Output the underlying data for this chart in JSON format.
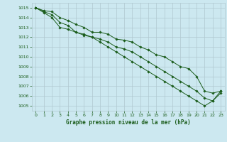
{
  "title": "Graphe pression niveau de la mer (hPa)",
  "background_color": "#cce8f0",
  "grid_color": "#b0c8d0",
  "line_color": "#1a5c1a",
  "x_min": 0,
  "x_max": 23,
  "y_min": 1004.5,
  "y_max": 1015.5,
  "y_ticks": [
    1005,
    1006,
    1007,
    1008,
    1009,
    1010,
    1011,
    1012,
    1013,
    1014,
    1015
  ],
  "x_ticks": [
    0,
    1,
    2,
    3,
    4,
    5,
    6,
    7,
    8,
    9,
    10,
    11,
    12,
    13,
    14,
    15,
    16,
    17,
    18,
    19,
    20,
    21,
    22,
    23
  ],
  "series": [
    [
      1015.0,
      1014.7,
      1014.6,
      1014.0,
      1013.7,
      1013.3,
      1013.0,
      1012.5,
      1012.5,
      1012.3,
      1011.8,
      1011.7,
      1011.5,
      1011.0,
      1010.7,
      1010.2,
      1010.0,
      1009.5,
      1009.0,
      1008.8,
      1008.0,
      1006.5,
      1006.3,
      1006.5
    ],
    [
      1015.0,
      1014.6,
      1014.3,
      1013.5,
      1013.2,
      1012.5,
      1012.3,
      1012.0,
      1011.8,
      1011.5,
      1011.0,
      1010.8,
      1010.5,
      1010.0,
      1009.5,
      1009.0,
      1008.5,
      1008.0,
      1007.5,
      1007.0,
      1006.5,
      1005.8,
      1005.5,
      1006.5
    ],
    [
      1015.0,
      1014.5,
      1014.0,
      1013.0,
      1012.8,
      1012.5,
      1012.2,
      1012.0,
      1011.5,
      1011.0,
      1010.5,
      1010.0,
      1009.5,
      1009.0,
      1008.5,
      1008.0,
      1007.5,
      1007.0,
      1006.5,
      1006.0,
      1005.5,
      1005.0,
      1005.5,
      1006.3
    ]
  ]
}
